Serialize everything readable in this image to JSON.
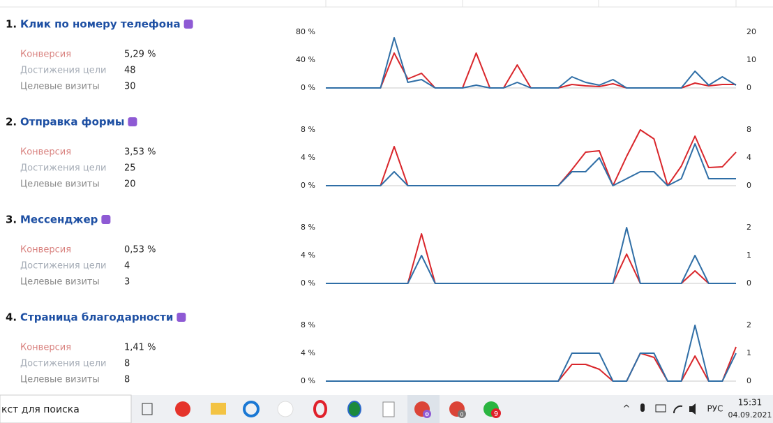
{
  "goals": [
    {
      "number": "1.",
      "title": "Клик по номеру телефона",
      "metrics": [
        {
          "label": "Конверсия",
          "value": "5,29 %"
        },
        {
          "label": "Достижения цели",
          "value": "48"
        },
        {
          "label": "Целевые визиты",
          "value": "30"
        }
      ],
      "chart": {
        "type": "line",
        "ylim": [
          0,
          80
        ],
        "yticks": [
          {
            "value": 0,
            "label": "0 %"
          },
          {
            "value": 40,
            "label": "40 %"
          },
          {
            "value": 80,
            "label": "80 %"
          }
        ],
        "y2lim": [
          0,
          20
        ],
        "y2ticks": [
          0,
          10,
          20
        ],
        "series": [
          {
            "color": "#d9262b",
            "values": [
              0,
              0,
              0,
              0,
              0,
              50,
              13,
              21,
              0,
              0,
              0,
              50,
              0,
              0,
              33,
              0,
              0,
              0,
              5,
              3,
              2,
              6,
              0,
              0,
              0,
              0,
              0,
              7,
              3,
              5,
              5
            ]
          },
          {
            "color": "#2f6ea6",
            "axis": "y2",
            "values": [
              0,
              0,
              0,
              0,
              0,
              18,
              2,
              3,
              0,
              0,
              0,
              1,
              0,
              0,
              2,
              0,
              0,
              0,
              4,
              2,
              1,
              3,
              0,
              0,
              0,
              0,
              0,
              6,
              1,
              4,
              1
            ]
          }
        ]
      }
    },
    {
      "number": "2.",
      "title": "Отправка формы",
      "metrics": [
        {
          "label": "Конверсия",
          "value": "3,53 %"
        },
        {
          "label": "Достижения цели",
          "value": "25"
        },
        {
          "label": "Целевые визиты",
          "value": "20"
        }
      ],
      "chart": {
        "type": "line",
        "ylim": [
          0,
          8
        ],
        "yticks": [
          {
            "value": 0,
            "label": "0 %"
          },
          {
            "value": 4,
            "label": "4 %"
          },
          {
            "value": 8,
            "label": "8 %"
          }
        ],
        "y2lim": [
          0,
          8
        ],
        "y2ticks": [
          0,
          4,
          8
        ],
        "series": [
          {
            "color": "#d9262b",
            "values": [
              0,
              0,
              0,
              0,
              0,
              5.6,
              0,
              0,
              0,
              0,
              0,
              0,
              0,
              0,
              0,
              0,
              0,
              0,
              2.3,
              4.8,
              5.0,
              0,
              4.2,
              8,
              6.7,
              0,
              2.8,
              7.1,
              2.6,
              2.7,
              4.8
            ]
          },
          {
            "color": "#2f6ea6",
            "axis": "y2",
            "values": [
              0,
              0,
              0,
              0,
              0,
              2,
              0,
              0,
              0,
              0,
              0,
              0,
              0,
              0,
              0,
              0,
              0,
              0,
              2,
              2,
              4,
              0,
              1,
              2,
              2,
              0,
              1,
              6,
              1,
              1,
              1
            ]
          }
        ]
      }
    },
    {
      "number": "3.",
      "title": "Мессенджер",
      "metrics": [
        {
          "label": "Конверсия",
          "value": "0,53 %"
        },
        {
          "label": "Достижения цели",
          "value": "4"
        },
        {
          "label": "Целевые визиты",
          "value": "3"
        }
      ],
      "chart": {
        "type": "line",
        "ylim": [
          0,
          8
        ],
        "yticks": [
          {
            "value": 0,
            "label": "0 %"
          },
          {
            "value": 4,
            "label": "4 %"
          },
          {
            "value": 8,
            "label": "8 %"
          }
        ],
        "y2lim": [
          0,
          2
        ],
        "y2ticks": [
          0,
          1,
          2
        ],
        "series": [
          {
            "color": "#d9262b",
            "values": [
              0,
              0,
              0,
              0,
              0,
              0,
              0,
              7.1,
              0,
              0,
              0,
              0,
              0,
              0,
              0,
              0,
              0,
              0,
              0,
              0,
              0,
              0,
              4.2,
              0,
              0,
              0,
              0,
              1.8,
              0,
              0,
              0
            ]
          },
          {
            "color": "#2f6ea6",
            "axis": "y2",
            "values": [
              0,
              0,
              0,
              0,
              0,
              0,
              0,
              1,
              0,
              0,
              0,
              0,
              0,
              0,
              0,
              0,
              0,
              0,
              0,
              0,
              0,
              0,
              2,
              0,
              0,
              0,
              0,
              1,
              0,
              0,
              0
            ]
          }
        ]
      }
    },
    {
      "number": "4.",
      "title": "Страница благодарности",
      "metrics": [
        {
          "label": "Конверсия",
          "value": "1,41 %"
        },
        {
          "label": "Достижения цели",
          "value": "8"
        },
        {
          "label": "Целевые визиты",
          "value": "8"
        }
      ],
      "chart": {
        "type": "line",
        "ylim": [
          0,
          8
        ],
        "yticks": [
          {
            "value": 0,
            "label": "0 %"
          },
          {
            "value": 4,
            "label": "4 %"
          },
          {
            "value": 8,
            "label": "8 %"
          }
        ],
        "y2lim": [
          0,
          2
        ],
        "y2ticks": [
          0,
          1,
          2
        ],
        "series": [
          {
            "color": "#d9262b",
            "values": [
              0,
              0,
              0,
              0,
              0,
              0,
              0,
              0,
              0,
              0,
              0,
              0,
              0,
              0,
              0,
              0,
              0,
              0,
              2.4,
              2.4,
              1.7,
              0,
              0,
              4.0,
              3.4,
              0,
              0,
              3.6,
              0,
              0,
              4.9
            ]
          },
          {
            "color": "#2f6ea6",
            "axis": "y2",
            "values": [
              0,
              0,
              0,
              0,
              0,
              0,
              0,
              0,
              0,
              0,
              0,
              0,
              0,
              0,
              0,
              0,
              0,
              0,
              1,
              1,
              1,
              0,
              0,
              1,
              1,
              0,
              0,
              2,
              0,
              0,
              1
            ]
          }
        ]
      }
    }
  ],
  "taskbar": {
    "search": "кст для поиска",
    "badges": [
      "Ф",
      "0",
      "9"
    ],
    "lang": "РУС",
    "time": "15:31",
    "date": "04.09.2021"
  }
}
